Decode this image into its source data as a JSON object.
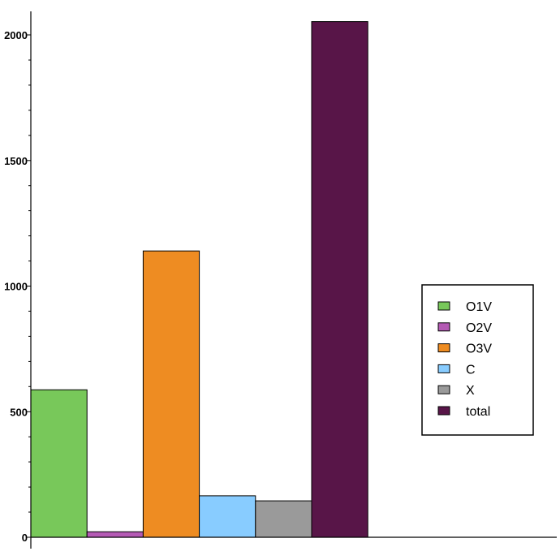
{
  "chart_data": {
    "type": "bar",
    "categories": [
      "O1V",
      "O2V",
      "O3V",
      "C",
      "X",
      "total"
    ],
    "values": [
      587,
      22,
      1140,
      165,
      145,
      2053
    ],
    "colors": [
      "#78c85a",
      "#b45ab4",
      "#ee8c22",
      "#88ccff",
      "#9a9a9a",
      "#581548"
    ],
    "title": "",
    "xlabel": "",
    "ylabel": "",
    "ylim": [
      0,
      2100
    ],
    "yticks": [
      0,
      500,
      1000,
      1500,
      2000
    ],
    "ytick_labels": [
      "0",
      "500",
      "1000",
      "1500",
      "2000"
    ],
    "grid": false,
    "legend_position": "right",
    "legend": [
      "O1V",
      "O2V",
      "O3V",
      "C",
      "X",
      "total"
    ]
  }
}
